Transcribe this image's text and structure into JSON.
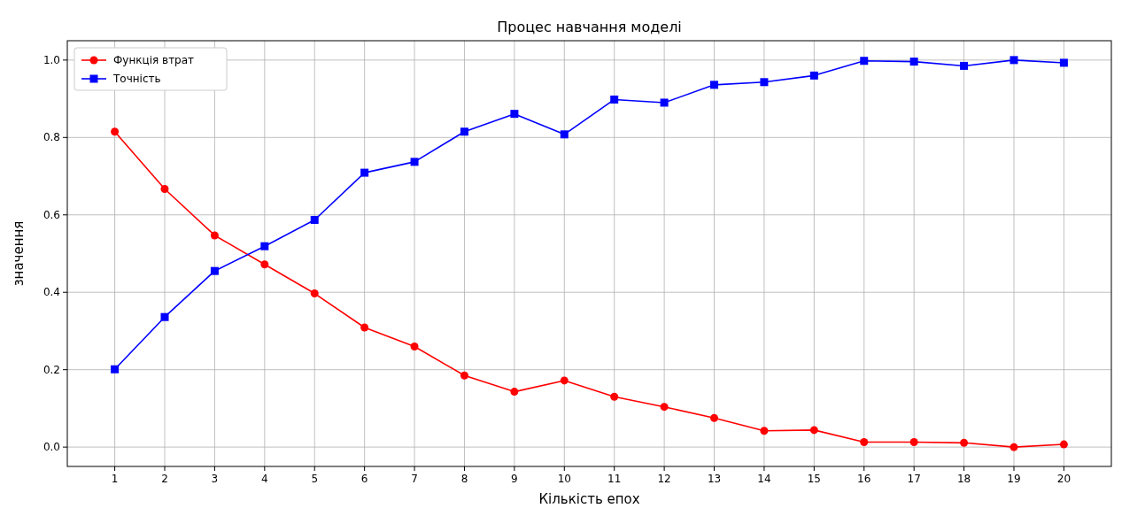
{
  "chart_data": {
    "type": "line",
    "title": "Процес навчання моделі",
    "xlabel": "Кількість епох",
    "ylabel": "значення",
    "x": [
      1,
      2,
      3,
      4,
      5,
      6,
      7,
      8,
      9,
      10,
      11,
      12,
      13,
      14,
      15,
      16,
      17,
      18,
      19,
      20
    ],
    "xlim": [
      0.05,
      20.95
    ],
    "xticks": [
      1,
      2,
      3,
      4,
      5,
      6,
      7,
      8,
      9,
      10,
      11,
      12,
      13,
      14,
      15,
      16,
      17,
      18,
      19,
      20
    ],
    "ylim": [
      -0.05,
      1.05
    ],
    "yticks": [
      {
        "value": 0,
        "label": "0.0"
      },
      {
        "value": 0.2,
        "label": "0.2"
      },
      {
        "value": 0.4,
        "label": "0.4"
      },
      {
        "value": 0.6,
        "label": "0.6"
      },
      {
        "value": 0.8,
        "label": "0.8"
      },
      {
        "value": 1,
        "label": "1.0"
      }
    ],
    "grid": true,
    "legend": "top left",
    "line_style": "solid",
    "series": [
      {
        "name": "Функція втрат",
        "color": "#ff0000",
        "marker": "circle",
        "values": [
          0.815,
          0.667,
          0.547,
          0.472,
          0.397,
          0.309,
          0.26,
          0.185,
          0.143,
          0.172,
          0.13,
          0.104,
          0.075,
          0.042,
          0.044,
          0.013,
          0.013,
          0.011,
          0.0,
          0.007
        ]
      },
      {
        "name": "Точність",
        "color": "#0000ff",
        "marker": "square",
        "values": [
          0.201,
          0.336,
          0.455,
          0.519,
          0.587,
          0.709,
          0.737,
          0.815,
          0.861,
          0.808,
          0.898,
          0.89,
          0.936,
          0.943,
          0.96,
          0.998,
          0.996,
          0.985,
          1.0,
          0.993
        ]
      }
    ]
  }
}
